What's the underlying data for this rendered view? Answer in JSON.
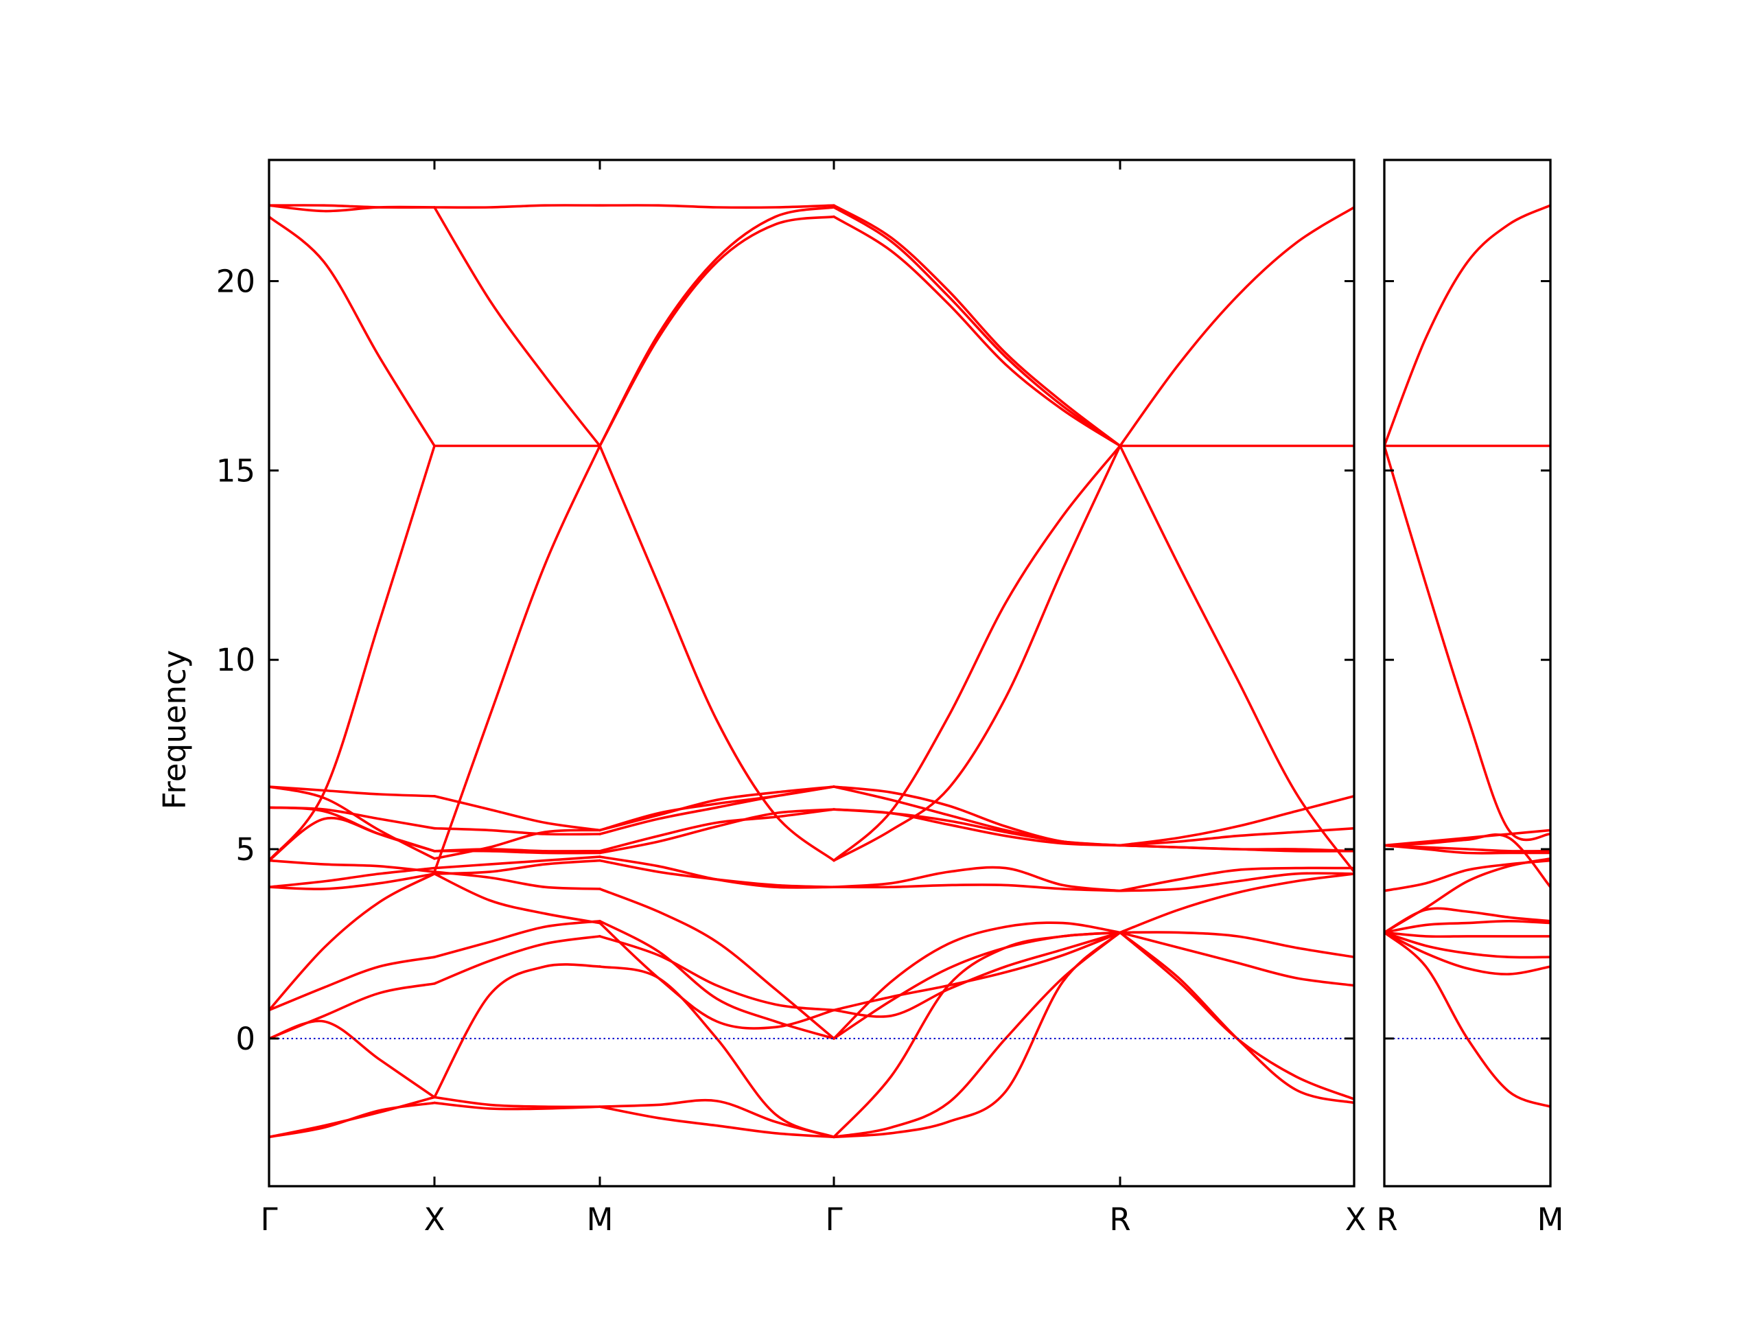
{
  "chart_data": {
    "type": "line",
    "ylabel": "Frequency",
    "ylim": [
      -3.9,
      23.2
    ],
    "yticks": [
      0,
      5,
      10,
      15,
      20
    ],
    "ytick_labels": [
      "0",
      "5",
      "10",
      "15",
      "20"
    ],
    "zero_line": {
      "y": 0,
      "style": "dotted",
      "color": "#0000cc"
    },
    "band_color": "#ff0000",
    "panels": [
      {
        "x_labels": [
          "Γ",
          "X",
          "M",
          "Γ",
          "R",
          "X"
        ],
        "segments": [
          {
            "from": "Γ",
            "to": "X",
            "bands": [
              [
                -2.6,
                -2.35,
                -1.9,
                -1.7
              ],
              [
                -2.6,
                -2.3,
                -1.95,
                -1.55
              ],
              [
                0.0,
                0.45,
                -0.55,
                -1.55
              ],
              [
                0.0,
                0.6,
                1.2,
                1.45
              ],
              [
                0.75,
                1.35,
                1.9,
                2.15
              ],
              [
                0.75,
                2.4,
                3.6,
                4.35
              ],
              [
                4.0,
                3.95,
                4.1,
                4.35
              ],
              [
                4.0,
                4.15,
                4.35,
                4.5
              ],
              [
                4.7,
                4.6,
                4.55,
                4.4
              ],
              [
                4.7,
                5.8,
                5.4,
                4.95
              ],
              [
                6.1,
                6.0,
                5.4,
                4.95
              ],
              [
                6.1,
                6.05,
                5.8,
                5.55
              ],
              [
                6.65,
                6.35,
                5.5,
                4.75
              ],
              [
                6.65,
                6.55,
                6.45,
                6.4
              ],
              [
                4.7,
                6.5,
                11.0,
                15.65
              ],
              [
                21.7,
                20.5,
                18.0,
                15.65
              ],
              [
                22.0,
                21.85,
                21.95,
                21.95
              ],
              [
                22.0,
                22.0,
                21.95,
                21.95
              ]
            ]
          },
          {
            "from": "X",
            "to": "M",
            "bands": [
              [
                -1.55,
                -1.75,
                -1.8,
                -1.8
              ],
              [
                -1.7,
                -1.85,
                -1.85,
                -1.8
              ],
              [
                -1.55,
                1.15,
                1.9,
                1.9
              ],
              [
                1.45,
                2.05,
                2.5,
                2.7
              ],
              [
                2.15,
                2.55,
                2.95,
                3.1
              ],
              [
                4.35,
                3.65,
                3.3,
                3.05
              ],
              [
                4.4,
                4.25,
                4.0,
                3.95
              ],
              [
                4.35,
                4.4,
                4.6,
                4.7
              ],
              [
                4.5,
                4.6,
                4.7,
                4.8
              ],
              [
                4.95,
                4.95,
                4.9,
                4.9
              ],
              [
                4.95,
                5.0,
                4.95,
                4.95
              ],
              [
                5.55,
                5.5,
                5.4,
                5.4
              ],
              [
                4.75,
                5.05,
                5.45,
                5.5
              ],
              [
                6.4,
                6.05,
                5.7,
                5.5
              ],
              [
                4.4,
                8.5,
                12.5,
                15.65
              ],
              [
                15.65,
                15.65,
                15.65,
                15.65
              ],
              [
                21.95,
                19.5,
                17.5,
                15.65
              ],
              [
                21.95,
                21.95,
                22.0,
                22.0
              ]
            ]
          },
          {
            "from": "M",
            "to": "Γ",
            "bands": [
              [
                -1.8,
                -1.75,
                -1.65,
                -2.2,
                -2.6
              ],
              [
                -1.8,
                -2.1,
                -2.3,
                -2.5,
                -2.6
              ],
              [
                1.9,
                1.6,
                0.0,
                -2.0,
                -2.6
              ],
              [
                2.7,
                2.2,
                1.4,
                0.9,
                0.75
              ],
              [
                3.1,
                2.3,
                1.05,
                0.45,
                0.0
              ],
              [
                3.05,
                1.6,
                0.45,
                0.3,
                0.75
              ],
              [
                3.95,
                3.35,
                2.55,
                1.3,
                0.0
              ],
              [
                4.7,
                4.4,
                4.2,
                4.05,
                4.0
              ],
              [
                4.8,
                4.55,
                4.2,
                4.0,
                4.0
              ],
              [
                4.9,
                5.2,
                5.6,
                5.95,
                6.05
              ],
              [
                4.95,
                5.35,
                5.7,
                5.85,
                6.05
              ],
              [
                5.4,
                5.8,
                6.1,
                6.4,
                6.65
              ],
              [
                5.5,
                5.95,
                6.2,
                6.4,
                6.65
              ],
              [
                5.5,
                5.9,
                6.3,
                6.5,
                6.65
              ],
              [
                15.65,
                18.5,
                20.5,
                21.5,
                21.7
              ],
              [
                15.65,
                18.6,
                20.6,
                21.7,
                21.95
              ],
              [
                15.65,
                12.0,
                8.4,
                5.9,
                4.7
              ],
              [
                22.0,
                22.0,
                21.95,
                21.95,
                22.0
              ]
            ]
          },
          {
            "from": "Γ",
            "to": "R",
            "bands": [
              [
                -2.6,
                -2.5,
                -2.2,
                -1.4,
                1.5,
                2.8
              ],
              [
                -2.6,
                -2.35,
                -1.7,
                0.0,
                1.6,
                2.8
              ],
              [
                -2.6,
                -1.0,
                1.4,
                2.4,
                2.7,
                2.8
              ],
              [
                0.0,
                1.0,
                1.85,
                2.4,
                2.7,
                2.8
              ],
              [
                0.0,
                1.5,
                2.5,
                2.95,
                3.05,
                2.8
              ],
              [
                0.75,
                0.6,
                1.3,
                1.9,
                2.35,
                2.8
              ],
              [
                0.75,
                1.1,
                1.4,
                1.75,
                2.2,
                2.8
              ],
              [
                4.0,
                4.0,
                4.05,
                4.05,
                3.95,
                3.9
              ],
              [
                4.0,
                4.1,
                4.4,
                4.5,
                4.05,
                3.9
              ],
              [
                4.7,
                5.5,
                6.6,
                9.0,
                12.4,
                15.65
              ],
              [
                6.05,
                5.95,
                5.65,
                5.35,
                5.15,
                5.1
              ],
              [
                6.05,
                5.95,
                5.75,
                5.45,
                5.2,
                5.1
              ],
              [
                6.65,
                6.3,
                5.9,
                5.5,
                5.2,
                5.1
              ],
              [
                6.65,
                6.5,
                6.15,
                5.6,
                5.2,
                5.1
              ],
              [
                21.7,
                20.8,
                19.4,
                17.8,
                16.6,
                15.65
              ],
              [
                21.95,
                21.05,
                19.6,
                18.0,
                16.7,
                15.65
              ],
              [
                22.0,
                21.15,
                19.75,
                18.1,
                16.8,
                15.65
              ],
              [
                4.7,
                6.0,
                8.5,
                11.5,
                13.8,
                15.65
              ]
            ]
          },
          {
            "from": "R",
            "to": "X",
            "bands": [
              [
                2.8,
                1.5,
                0.0,
                -1.0,
                -1.6
              ],
              [
                2.8,
                1.6,
                0.0,
                -1.35,
                -1.7
              ],
              [
                2.8,
                2.4,
                2.0,
                1.6,
                1.4
              ],
              [
                2.8,
                2.8,
                2.7,
                2.4,
                2.15
              ],
              [
                2.8,
                3.4,
                3.85,
                4.15,
                4.35
              ],
              [
                3.9,
                3.95,
                4.15,
                4.35,
                4.35
              ],
              [
                3.9,
                4.2,
                4.45,
                4.5,
                4.5
              ],
              [
                5.1,
                5.05,
                5.0,
                5.0,
                4.95
              ],
              [
                5.1,
                5.05,
                5.0,
                4.95,
                4.95
              ],
              [
                5.1,
                5.2,
                5.35,
                5.45,
                5.55
              ],
              [
                5.1,
                5.3,
                5.6,
                6.0,
                6.4
              ],
              [
                15.65,
                15.65,
                15.65,
                15.65,
                15.65
              ],
              [
                15.65,
                12.5,
                9.5,
                6.5,
                4.4
              ],
              [
                15.65,
                17.8,
                19.6,
                21.0,
                21.95
              ]
            ]
          }
        ]
      },
      {
        "x_labels": [
          "R",
          "M"
        ],
        "segments": [
          {
            "from": "R",
            "to": "M",
            "bands": [
              [
                2.8,
                1.9,
                0.0,
                -1.4,
                -1.8
              ],
              [
                2.8,
                2.25,
                1.85,
                1.7,
                1.9
              ],
              [
                2.8,
                2.45,
                2.25,
                2.15,
                2.15
              ],
              [
                2.8,
                2.7,
                2.7,
                2.7,
                2.7
              ],
              [
                2.8,
                3.0,
                3.05,
                3.1,
                3.05
              ],
              [
                2.8,
                3.45,
                4.15,
                4.55,
                4.75
              ],
              [
                2.8,
                3.4,
                3.35,
                3.2,
                3.1
              ],
              [
                3.9,
                4.1,
                4.45,
                4.6,
                4.7
              ],
              [
                5.1,
                5.0,
                4.9,
                4.9,
                4.9
              ],
              [
                5.1,
                5.05,
                5.0,
                4.95,
                4.95
              ],
              [
                5.1,
                5.2,
                5.3,
                5.4,
                5.5
              ],
              [
                5.1,
                5.15,
                5.25,
                5.3,
                4.0
              ],
              [
                15.65,
                15.65,
                15.65,
                15.65,
                15.65
              ],
              [
                15.65,
                12.0,
                8.5,
                5.5,
                5.4
              ],
              [
                15.65,
                18.5,
                20.5,
                21.5,
                22.0
              ]
            ]
          }
        ]
      }
    ]
  }
}
